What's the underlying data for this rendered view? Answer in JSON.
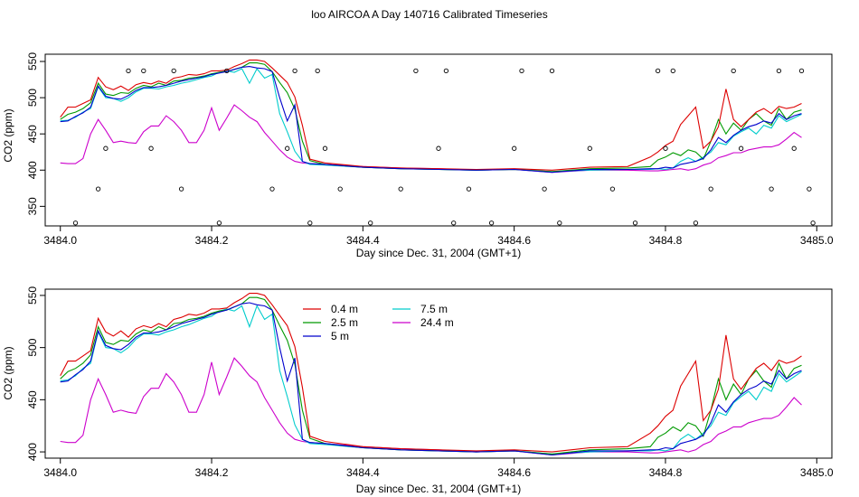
{
  "title": "loo AIRCOA A  Day 140716  Calibrated Timeseries",
  "colors": {
    "0.4 m": "#dd0000",
    "2.5 m": "#009900",
    "5 m": "#0000cc",
    "7.5 m": "#00cccc",
    "24.4 m": "#cc00cc"
  },
  "chart_data": [
    {
      "type": "line",
      "xlabel": "Day since Dec. 31, 2004 (GMT+1)",
      "ylabel": "CO2 (ppm)",
      "xlim": [
        3483.98,
        3485.02
      ],
      "ylim": [
        323,
        560
      ],
      "xticks": [
        3484.0,
        3484.2,
        3484.4,
        3484.6,
        3484.8,
        3485.0
      ],
      "xtick_labels": [
        "3484.0",
        "3484.2",
        "3484.4",
        "3484.6",
        "3484.8",
        "3485.0"
      ],
      "yticks": [
        350,
        400,
        450,
        500,
        550
      ],
      "ytick_labels": [
        "350",
        "400",
        "450",
        "500",
        "550"
      ],
      "legend": null,
      "series": [
        {
          "name": "0.4 m",
          "color": "#dd0000",
          "x": [
            3484.0,
            3484.01,
            3484.02,
            3484.03,
            3484.04,
            3484.05,
            3484.06,
            3484.07,
            3484.08,
            3484.09,
            3484.1,
            3484.11,
            3484.12,
            3484.13,
            3484.14,
            3484.15,
            3484.16,
            3484.17,
            3484.18,
            3484.19,
            3484.2,
            3484.21,
            3484.22,
            3484.23,
            3484.24,
            3484.25,
            3484.26,
            3484.27,
            3484.28,
            3484.29,
            3484.3,
            3484.31,
            3484.32,
            3484.33,
            3484.35,
            3484.4,
            3484.45,
            3484.5,
            3484.55,
            3484.6,
            3484.65,
            3484.7,
            3484.75,
            3484.78,
            3484.79,
            3484.8,
            3484.81,
            3484.82,
            3484.83,
            3484.84,
            3484.85,
            3484.86,
            3484.87,
            3484.88,
            3484.89,
            3484.9,
            3484.91,
            3484.92,
            3484.93,
            3484.94,
            3484.95,
            3484.96,
            3484.97,
            3484.98
          ],
          "y": [
            473,
            487,
            487,
            492,
            497,
            528,
            515,
            511,
            516,
            510,
            518,
            521,
            519,
            523,
            520,
            527,
            529,
            532,
            531,
            533,
            537,
            537,
            538,
            543,
            547,
            552,
            552,
            550,
            541,
            531,
            521,
            501,
            462,
            415,
            410,
            405,
            403,
            402,
            401,
            402,
            400,
            404,
            405,
            418,
            425,
            434,
            440,
            463,
            475,
            487,
            430,
            440,
            460,
            512,
            470,
            460,
            470,
            480,
            485,
            478,
            488,
            485,
            487,
            492
          ]
        },
        {
          "name": "2.5 m",
          "color": "#009900",
          "x": [
            3484.0,
            3484.01,
            3484.02,
            3484.03,
            3484.04,
            3484.05,
            3484.06,
            3484.07,
            3484.08,
            3484.09,
            3484.1,
            3484.11,
            3484.12,
            3484.13,
            3484.14,
            3484.15,
            3484.16,
            3484.17,
            3484.18,
            3484.19,
            3484.2,
            3484.21,
            3484.22,
            3484.23,
            3484.24,
            3484.25,
            3484.26,
            3484.27,
            3484.28,
            3484.29,
            3484.3,
            3484.31,
            3484.32,
            3484.33,
            3484.35,
            3484.4,
            3484.45,
            3484.5,
            3484.55,
            3484.6,
            3484.65,
            3484.7,
            3484.75,
            3484.78,
            3484.79,
            3484.8,
            3484.81,
            3484.82,
            3484.83,
            3484.84,
            3484.85,
            3484.86,
            3484.87,
            3484.88,
            3484.89,
            3484.9,
            3484.91,
            3484.92,
            3484.93,
            3484.94,
            3484.95,
            3484.96,
            3484.97,
            3484.98
          ],
          "y": [
            470,
            477,
            480,
            485,
            493,
            520,
            505,
            503,
            507,
            506,
            513,
            517,
            515,
            520,
            517,
            523,
            524,
            527,
            528,
            530,
            533,
            535,
            536,
            539,
            542,
            548,
            548,
            546,
            536,
            521,
            507,
            484,
            440,
            413,
            408,
            404,
            402,
            401,
            400,
            401,
            398,
            402,
            403,
            405,
            414,
            418,
            424,
            420,
            428,
            425,
            415,
            440,
            470,
            450,
            465,
            455,
            470,
            478,
            468,
            462,
            485,
            470,
            480,
            483
          ]
        },
        {
          "name": "5 m",
          "color": "#0000cc",
          "x": [
            3484.0,
            3484.01,
            3484.02,
            3484.03,
            3484.04,
            3484.05,
            3484.06,
            3484.07,
            3484.08,
            3484.09,
            3484.1,
            3484.11,
            3484.12,
            3484.13,
            3484.14,
            3484.15,
            3484.16,
            3484.17,
            3484.18,
            3484.19,
            3484.2,
            3484.21,
            3484.22,
            3484.23,
            3484.24,
            3484.25,
            3484.26,
            3484.27,
            3484.28,
            3484.29,
            3484.3,
            3484.31,
            3484.32,
            3484.33,
            3484.35,
            3484.4,
            3484.45,
            3484.5,
            3484.55,
            3484.6,
            3484.65,
            3484.7,
            3484.75,
            3484.78,
            3484.79,
            3484.8,
            3484.81,
            3484.82,
            3484.83,
            3484.84,
            3484.85,
            3484.86,
            3484.87,
            3484.88,
            3484.89,
            3484.9,
            3484.91,
            3484.92,
            3484.93,
            3484.94,
            3484.95,
            3484.96,
            3484.97,
            3484.98
          ],
          "y": [
            467,
            468,
            474,
            479,
            487,
            516,
            502,
            499,
            498,
            503,
            510,
            514,
            514,
            515,
            517,
            520,
            523,
            525,
            527,
            529,
            532,
            534,
            536,
            539,
            542,
            543,
            541,
            540,
            536,
            500,
            468,
            490,
            412,
            409,
            408,
            404,
            402,
            401,
            400,
            401,
            397,
            401,
            401,
            402,
            402,
            404,
            403,
            408,
            410,
            412,
            416,
            428,
            445,
            438,
            448,
            455,
            460,
            463,
            468,
            465,
            478,
            470,
            475,
            478
          ]
        },
        {
          "name": "7.5 m",
          "color": "#00cccc",
          "x": [
            3484.0,
            3484.01,
            3484.02,
            3484.03,
            3484.04,
            3484.05,
            3484.06,
            3484.07,
            3484.08,
            3484.09,
            3484.1,
            3484.11,
            3484.12,
            3484.13,
            3484.14,
            3484.15,
            3484.16,
            3484.17,
            3484.18,
            3484.19,
            3484.2,
            3484.21,
            3484.22,
            3484.23,
            3484.24,
            3484.25,
            3484.26,
            3484.27,
            3484.28,
            3484.29,
            3484.3,
            3484.31,
            3484.32,
            3484.33,
            3484.35,
            3484.4,
            3484.45,
            3484.5,
            3484.55,
            3484.6,
            3484.65,
            3484.7,
            3484.75,
            3484.78,
            3484.79,
            3484.8,
            3484.81,
            3484.82,
            3484.83,
            3484.84,
            3484.85,
            3484.86,
            3484.87,
            3484.88,
            3484.89,
            3484.9,
            3484.91,
            3484.92,
            3484.93,
            3484.94,
            3484.95,
            3484.96,
            3484.97,
            3484.98
          ],
          "y": [
            468,
            469,
            473,
            480,
            485,
            515,
            500,
            499,
            495,
            500,
            508,
            513,
            513,
            512,
            515,
            517,
            520,
            522,
            525,
            528,
            530,
            535,
            537,
            535,
            540,
            520,
            540,
            527,
            532,
            478,
            453,
            426,
            412,
            408,
            407,
            404,
            402,
            401,
            400,
            401,
            398,
            400,
            401,
            401,
            402,
            401,
            403,
            412,
            417,
            412,
            418,
            425,
            438,
            435,
            447,
            453,
            458,
            450,
            462,
            458,
            475,
            467,
            472,
            477
          ]
        },
        {
          "name": "24.4 m",
          "color": "#cc00cc",
          "x": [
            3484.0,
            3484.01,
            3484.02,
            3484.03,
            3484.04,
            3484.05,
            3484.06,
            3484.07,
            3484.08,
            3484.09,
            3484.1,
            3484.11,
            3484.12,
            3484.13,
            3484.14,
            3484.15,
            3484.16,
            3484.17,
            3484.18,
            3484.19,
            3484.2,
            3484.21,
            3484.22,
            3484.23,
            3484.24,
            3484.25,
            3484.26,
            3484.27,
            3484.28,
            3484.29,
            3484.3,
            3484.31,
            3484.32,
            3484.33,
            3484.35,
            3484.4,
            3484.45,
            3484.5,
            3484.55,
            3484.6,
            3484.65,
            3484.7,
            3484.75,
            3484.78,
            3484.79,
            3484.8,
            3484.81,
            3484.82,
            3484.83,
            3484.84,
            3484.85,
            3484.86,
            3484.87,
            3484.88,
            3484.89,
            3484.9,
            3484.91,
            3484.92,
            3484.93,
            3484.94,
            3484.95,
            3484.96,
            3484.97,
            3484.98
          ],
          "y": [
            410,
            409,
            409,
            416,
            450,
            470,
            455,
            438,
            440,
            438,
            437,
            453,
            461,
            461,
            475,
            467,
            455,
            438,
            438,
            455,
            486,
            455,
            472,
            490,
            482,
            473,
            467,
            452,
            440,
            428,
            418,
            412,
            410,
            409,
            408,
            405,
            403,
            402,
            400,
            401,
            397,
            400,
            400,
            399,
            399,
            400,
            401,
            402,
            400,
            402,
            407,
            410,
            417,
            420,
            424,
            424,
            428,
            430,
            432,
            432,
            435,
            443,
            452,
            445
          ]
        }
      ],
      "annotations": {
        "type": "scatter",
        "x": [
          3484.02,
          3484.05,
          3484.06,
          3484.09,
          3484.11,
          3484.12,
          3484.15,
          3484.16,
          3484.21,
          3484.22,
          3484.28,
          3484.3,
          3484.31,
          3484.33,
          3484.34,
          3484.35,
          3484.37,
          3484.41,
          3484.45,
          3484.47,
          3484.5,
          3484.51,
          3484.52,
          3484.54,
          3484.57,
          3484.6,
          3484.61,
          3484.64,
          3484.65,
          3484.66,
          3484.7,
          3484.73,
          3484.76,
          3484.79,
          3484.8,
          3484.81,
          3484.84,
          3484.86,
          3484.89,
          3484.9,
          3484.94,
          3484.95,
          3484.97,
          3484.98,
          3484.99,
          3484.995
        ],
        "y": [
          327,
          374,
          430,
          537,
          537,
          430,
          537,
          374,
          327,
          537,
          374,
          430,
          537,
          327,
          537,
          430,
          374,
          327,
          374,
          537,
          430,
          537,
          327,
          374,
          327,
          430,
          537,
          374,
          537,
          327,
          430,
          374,
          327,
          537,
          430,
          537,
          327,
          374,
          537,
          430,
          374,
          537,
          430,
          537,
          374,
          327
        ]
      }
    },
    {
      "type": "line",
      "xlabel": "Day since Dec. 31, 2004 (GMT+1)",
      "ylabel": "CO2 (ppm)",
      "xlim": [
        3483.98,
        3485.02
      ],
      "ylim": [
        394,
        556
      ],
      "xticks": [
        3484.0,
        3484.2,
        3484.4,
        3484.6,
        3484.8,
        3485.0
      ],
      "xtick_labels": [
        "3484.0",
        "3484.2",
        "3484.4",
        "3484.6",
        "3484.8",
        "3485.0"
      ],
      "yticks": [
        400,
        450,
        500,
        550
      ],
      "ytick_labels": [
        "400",
        "450",
        "500",
        "550"
      ],
      "legend": "top-center",
      "legend_entries": [
        "0.4 m",
        "2.5 m",
        "5 m",
        "7.5 m",
        "24.4 m"
      ],
      "same_series_as_first_panel": true
    }
  ]
}
